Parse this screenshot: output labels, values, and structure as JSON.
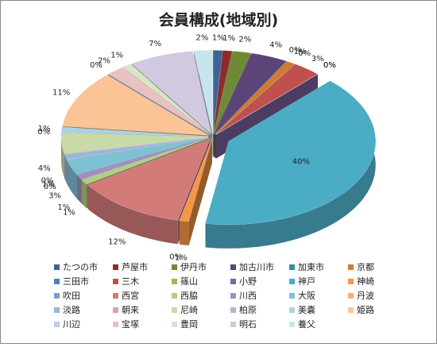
{
  "chart_data": {
    "type": "pie",
    "title": "会員構成(地域別)",
    "categories": [
      "たつの市",
      "芦屋市",
      "伊丹市",
      "加古川市",
      "加東市",
      "京都",
      "三田市",
      "三木",
      "篠山",
      "小野",
      "神戸",
      "神崎",
      "吹田",
      "西宮",
      "西脇",
      "川西",
      "大阪",
      "丹波",
      "淡路",
      "朝来",
      "尼崎",
      "柏原",
      "美嚢",
      "姫路",
      "川辺",
      "宝塚",
      "豊岡",
      "明石",
      "養父"
    ],
    "values": [
      1,
      1,
      2,
      4,
      0,
      1,
      0,
      3,
      0,
      0,
      40,
      1,
      0,
      12,
      1,
      1,
      3,
      0,
      1,
      0,
      4,
      0,
      1,
      11,
      0,
      2,
      1,
      7,
      2
    ],
    "value_labels": [
      "1%",
      "1%",
      "2%",
      "4%",
      "0%",
      "1%",
      "0%",
      "3%",
      "0%",
      "0%",
      "40%",
      "1%",
      "0%",
      "12%",
      "1%",
      "1%",
      "3%",
      "0%",
      "1%",
      "0%",
      "4%",
      "0%",
      "1%",
      "11%",
      "0%",
      "2%",
      "1%",
      "7%",
      "2%"
    ],
    "colors": [
      "#3c6496",
      "#8b2c2a",
      "#6f8a36",
      "#5b4479",
      "#2f8ea5",
      "#d57a2a",
      "#4f81bd",
      "#c0504d",
      "#9bbb59",
      "#8064a2",
      "#4bacc6",
      "#f79646",
      "#7a9fd0",
      "#d27b79",
      "#b3cc86",
      "#a28fbf",
      "#7dc1d5",
      "#f9ae70",
      "#9cb6dc",
      "#dea3a1",
      "#c7daa8",
      "#beb0d3",
      "#a7d3e0",
      "#fbc497",
      "#bdcdea",
      "#e8c1c0",
      "#d8e5c5",
      "#d2c9e1",
      "#c8e4ec"
    ]
  }
}
